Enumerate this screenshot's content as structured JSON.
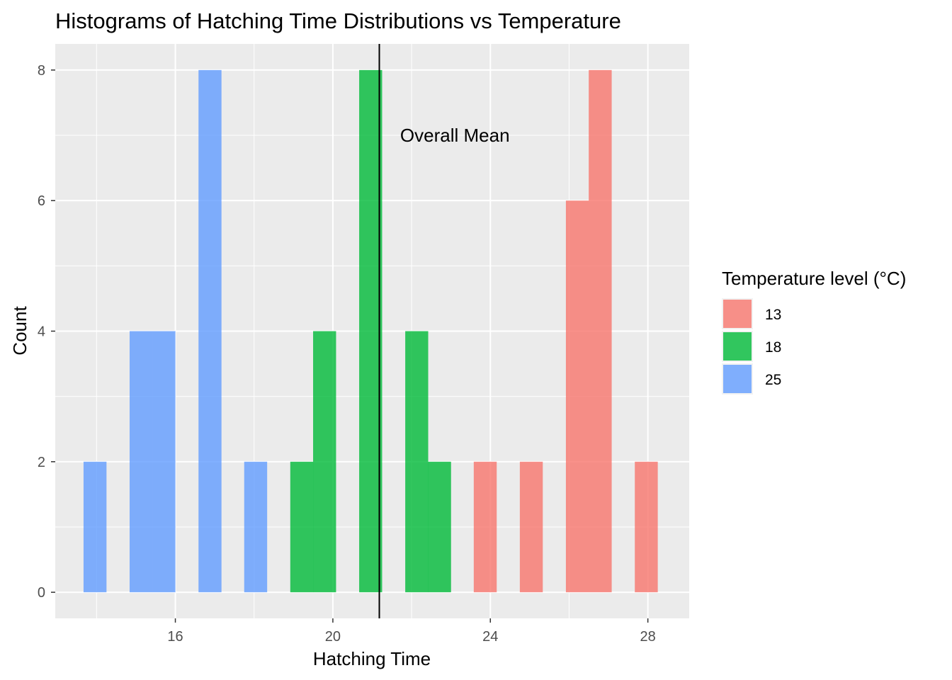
{
  "chart_data": {
    "type": "bar",
    "title": "Histograms of Hatching Time Distributions vs Temperature",
    "xlabel": "Hatching Time",
    "ylabel": "Count",
    "xlim": [
      12.95,
      29.05
    ],
    "ylim": [
      -0.4,
      8.4
    ],
    "x_ticks": [
      16,
      20,
      24,
      28
    ],
    "y_ticks": [
      0,
      2,
      4,
      6,
      8
    ],
    "x_tick_labels": [
      "16",
      "20",
      "24",
      "28"
    ],
    "y_tick_labels": [
      "0",
      "2",
      "4",
      "6",
      "8"
    ],
    "grid": true,
    "bin_width": 0.583,
    "legend": {
      "title": "Temperature level (°C)",
      "position": "right"
    },
    "series": [
      {
        "name": "13",
        "color": "#F8766D",
        "bins": [
          {
            "x": 23.87,
            "count": 2
          },
          {
            "x": 25.04,
            "count": 2
          },
          {
            "x": 26.21,
            "count": 6
          },
          {
            "x": 26.79,
            "count": 8
          },
          {
            "x": 27.96,
            "count": 2
          }
        ]
      },
      {
        "name": "18",
        "color": "#00BA38",
        "bins": [
          {
            "x": 19.21,
            "count": 2
          },
          {
            "x": 19.79,
            "count": 4
          },
          {
            "x": 20.96,
            "count": 8
          },
          {
            "x": 22.13,
            "count": 4
          },
          {
            "x": 22.71,
            "count": 2
          }
        ]
      },
      {
        "name": "25",
        "color": "#619CFF",
        "bins": [
          {
            "x": 13.96,
            "count": 2
          },
          {
            "x": 15.13,
            "count": 4
          },
          {
            "x": 15.71,
            "count": 4
          },
          {
            "x": 16.88,
            "count": 8
          },
          {
            "x": 18.04,
            "count": 2
          }
        ]
      }
    ],
    "mean_line": {
      "x": 21.18,
      "label": "Overall Mean",
      "label_x": 23.1,
      "label_y": 7
    }
  }
}
